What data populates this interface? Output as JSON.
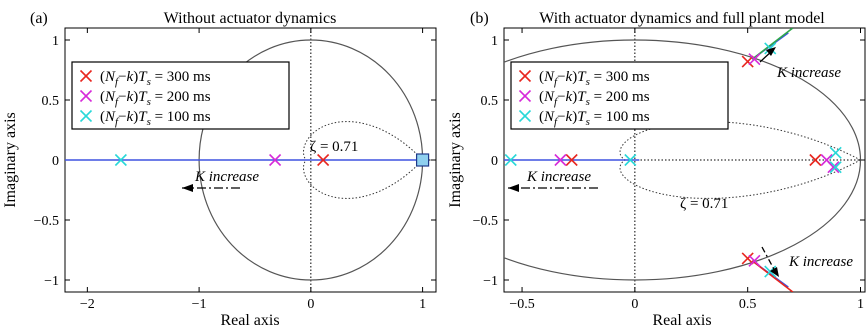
{
  "chart_data": [
    {
      "type": "root-locus",
      "panel_label": "(a)",
      "title": "Without actuator dynamics",
      "xlabel": "Real axis",
      "ylabel": "Imaginary axis",
      "xlim": [
        -2.2,
        1.12
      ],
      "ylim": [
        -1.1,
        1.1
      ],
      "xticks": [
        -2,
        -1,
        0,
        1
      ],
      "xtick_labels": [
        "−2",
        "−1",
        "0",
        "1"
      ],
      "yticks": [
        -1,
        -0.5,
        0,
        0.5,
        1
      ],
      "ytick_labels": [
        "−1",
        "−0.5",
        "0",
        "0.5",
        "1"
      ],
      "legend": {
        "placement": "top-left",
        "entries": [
          {
            "label": "(Nf−k)Ts = 300 ms",
            "marker": "x",
            "color": "#e8261f"
          },
          {
            "label": "(Nf−k)Ts = 200 ms",
            "marker": "x",
            "color": "#d62ad9"
          },
          {
            "label": "(Nf−k)Ts = 100 ms",
            "marker": "x",
            "color": "#28d8d8"
          }
        ]
      },
      "zeta_label": "ζ = 0.71",
      "k_label": "K increase",
      "locus_color": "#3e52e0",
      "locus_segments": [
        [
          [
            -2.2,
            0
          ],
          [
            1.0,
            0
          ]
        ]
      ],
      "open_loop_pole": {
        "x": 1.0,
        "y": 0,
        "marker": "square",
        "color": "#8fd0ef"
      },
      "markers": [
        {
          "series": "300 ms",
          "color": "#e8261f",
          "x": 0.11,
          "y": 0
        },
        {
          "series": "200 ms",
          "color": "#d62ad9",
          "x": -0.32,
          "y": 0
        },
        {
          "series": "100 ms",
          "color": "#28d8d8",
          "x": -1.7,
          "y": 0
        }
      ]
    },
    {
      "type": "root-locus",
      "panel_label": "(b)",
      "title": "With actuator dynamics and full plant model",
      "xlabel": "Real axis",
      "ylabel": "Imaginary axis",
      "xlim": [
        -0.58,
        1.02
      ],
      "ylim": [
        -1.1,
        1.1
      ],
      "xticks": [
        -0.5,
        0,
        0.5,
        1
      ],
      "xtick_labels": [
        "−0.5",
        "0",
        "0.5",
        "1"
      ],
      "yticks": [
        -1,
        -0.5,
        0,
        0.5,
        1
      ],
      "ytick_labels": [
        "−1",
        "−0.5",
        "0",
        "0.5",
        "1"
      ],
      "legend": {
        "placement": "top-left",
        "entries": [
          {
            "label": "(Nf−k)Ts = 300 ms",
            "marker": "x",
            "color": "#e8261f"
          },
          {
            "label": "(Nf−k)Ts = 200 ms",
            "marker": "x",
            "color": "#d62ad9"
          },
          {
            "label": "(Nf−k)Ts = 100 ms",
            "marker": "x",
            "color": "#28d8d8"
          }
        ]
      },
      "zeta_label": "ζ = 0.71",
      "k_label": "K increase",
      "locus_color": "#3e52e0",
      "locus_segments": [
        [
          [
            -0.58,
            0
          ],
          [
            0.02,
            0
          ]
        ],
        [
          [
            0.52,
            0.84
          ],
          [
            0.68,
            1.06
          ]
        ],
        [
          [
            0.52,
            -0.84
          ],
          [
            0.68,
            -1.06
          ]
        ]
      ],
      "markers": [
        {
          "series": "300 ms",
          "color": "#e8261f",
          "x": -0.28,
          "y": 0
        },
        {
          "series": "300 ms",
          "color": "#e8261f",
          "x": 0.8,
          "y": 0
        },
        {
          "series": "300 ms",
          "color": "#e8261f",
          "x": 0.5,
          "y": 0.82
        },
        {
          "series": "300 ms",
          "color": "#e8261f",
          "x": 0.5,
          "y": -0.82
        },
        {
          "series": "200 ms",
          "color": "#d62ad9",
          "x": -0.33,
          "y": 0
        },
        {
          "series": "200 ms",
          "color": "#d62ad9",
          "x": 0.85,
          "y": 0
        },
        {
          "series": "200 ms",
          "color": "#d62ad9",
          "x": 0.53,
          "y": 0.84
        },
        {
          "series": "200 ms",
          "color": "#d62ad9",
          "x": 0.53,
          "y": -0.84
        },
        {
          "series": "200 ms",
          "color": "#d62ad9",
          "x": 0.88,
          "y": -0.06
        },
        {
          "series": "100 ms",
          "color": "#28d8d8",
          "x": -0.55,
          "y": 0
        },
        {
          "series": "100 ms",
          "color": "#28d8d8",
          "x": -0.02,
          "y": 0
        },
        {
          "series": "100 ms",
          "color": "#28d8d8",
          "x": 0.89,
          "y": 0.06
        },
        {
          "series": "100 ms",
          "color": "#28d8d8",
          "x": 0.89,
          "y": -0.06
        },
        {
          "series": "100 ms",
          "color": "#28d8d8",
          "x": 0.6,
          "y": 0.93
        },
        {
          "series": "100 ms",
          "color": "#28d8d8",
          "x": 0.6,
          "y": -0.93
        }
      ]
    }
  ]
}
